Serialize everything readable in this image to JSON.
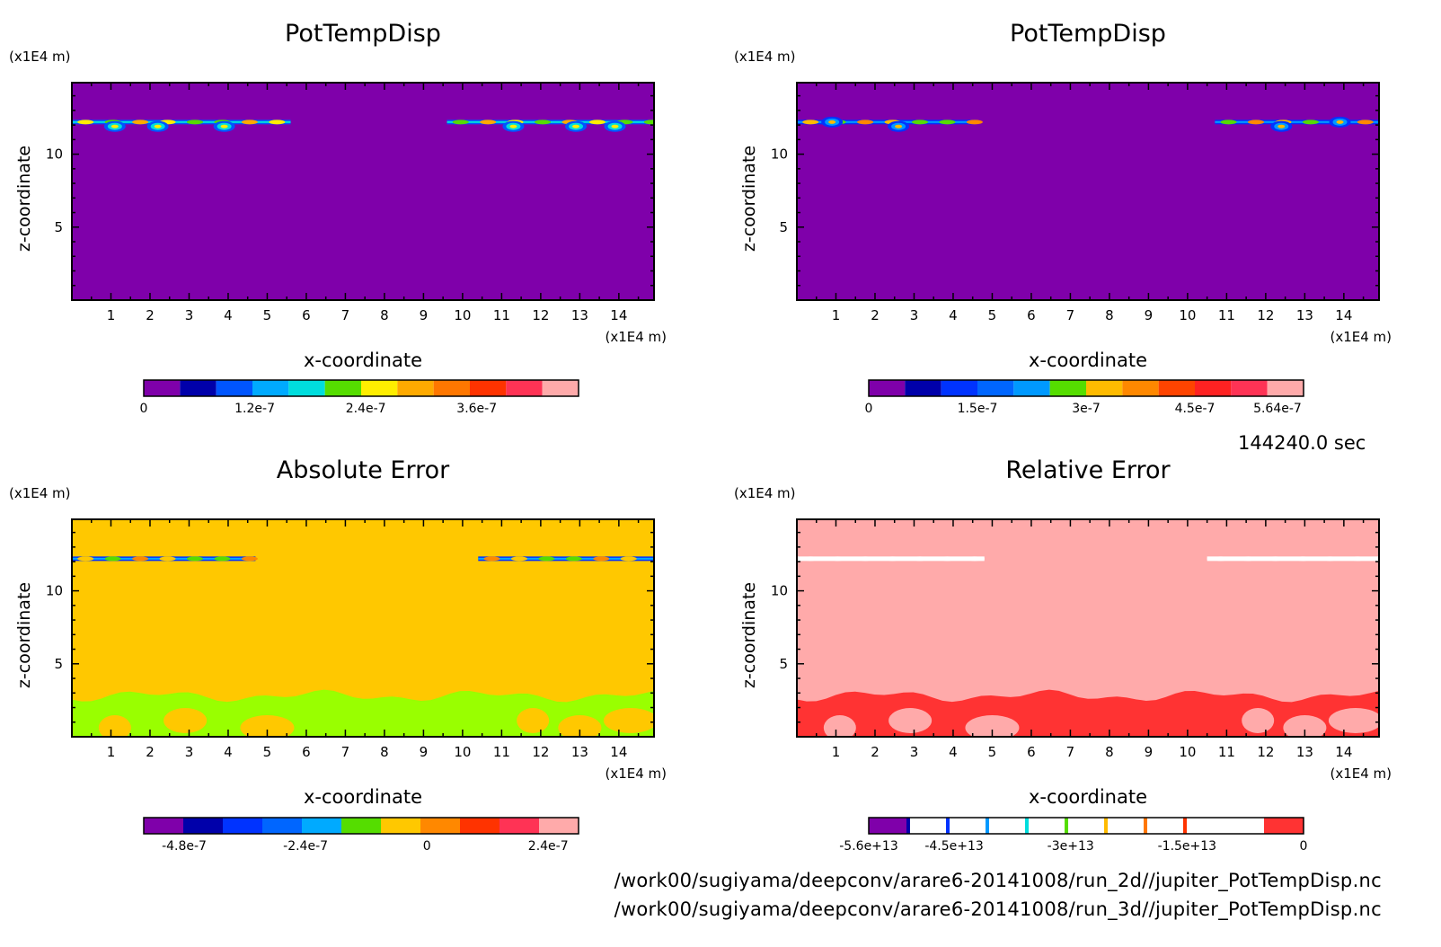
{
  "figure": {
    "time_label": "144240.0 sec",
    "files": [
      "/work00/sugiyama/deepconv/arare6-20141008/run_2d//jupiter_PotTempDisp.nc",
      "/work00/sugiyama/deepconv/arare6-20141008/run_3d//jupiter_PotTempDisp.nc"
    ]
  },
  "chart_data": [
    {
      "type": "heatmap",
      "title": "PotTempDisp",
      "xlabel": "x-coordinate",
      "ylabel": "z-coordinate",
      "x_unit": "(x1E4 m)",
      "y_unit": "(x1E4 m)",
      "xlim": [
        0,
        14.9
      ],
      "ylim": [
        0,
        14.9
      ],
      "x_ticks": [
        "1",
        "2",
        "3",
        "4",
        "5",
        "6",
        "7",
        "8",
        "9",
        "10",
        "11",
        "12",
        "13",
        "14"
      ],
      "y_ticks": [
        "5",
        "10"
      ],
      "background_color": "#7f00aa",
      "colorbar": {
        "colors": [
          "#7f00aa",
          "#0000aa",
          "#0055ff",
          "#00aaff",
          "#00dddd",
          "#55dd00",
          "#ffee00",
          "#ffaa00",
          "#ff7700",
          "#ff3300",
          "#ff3355",
          "#ffaaaa"
        ],
        "tick_labels": [
          "0",
          "1.2e-7",
          "2.4e-7",
          "3.6e-7"
        ],
        "tick_values": [
          0,
          1.2e-07,
          2.4e-07,
          3.6e-07
        ],
        "range": [
          0,
          4.7e-07
        ]
      },
      "features": [
        {
          "x": [
            0,
            5.6
          ],
          "z": 12.2,
          "kind": "band"
        },
        {
          "x": [
            9.6,
            14.9
          ],
          "z": 12.2,
          "kind": "band"
        },
        {
          "x": 1.1,
          "z": 11.9,
          "kind": "blob"
        },
        {
          "x": 2.2,
          "z": 11.9,
          "kind": "blob"
        },
        {
          "x": 3.9,
          "z": 11.9,
          "kind": "blob"
        },
        {
          "x": 11.3,
          "z": 11.9,
          "kind": "blob"
        },
        {
          "x": 12.9,
          "z": 11.9,
          "kind": "blob"
        },
        {
          "x": 13.9,
          "z": 11.9,
          "kind": "blob"
        }
      ]
    },
    {
      "type": "heatmap",
      "title": "PotTempDisp",
      "xlabel": "x-coordinate",
      "ylabel": "z-coordinate",
      "x_unit": "(x1E4 m)",
      "y_unit": "(x1E4 m)",
      "xlim": [
        0,
        14.9
      ],
      "ylim": [
        0,
        14.9
      ],
      "x_ticks": [
        "1",
        "2",
        "3",
        "4",
        "5",
        "6",
        "7",
        "8",
        "9",
        "10",
        "11",
        "12",
        "13",
        "14"
      ],
      "y_ticks": [
        "5",
        "10"
      ],
      "background_color": "#7f00aa",
      "colorbar": {
        "colors": [
          "#7f00aa",
          "#0000aa",
          "#0033ff",
          "#0066ff",
          "#0099ff",
          "#55dd00",
          "#ffbb00",
          "#ff8800",
          "#ff4400",
          "#ff2222",
          "#ff3355",
          "#ffaaaa"
        ],
        "tick_labels": [
          "0",
          "1.5e-7",
          "3e-7",
          "4.5e-7",
          "5.64e-7"
        ],
        "tick_values": [
          0,
          1.5e-07,
          3e-07,
          4.5e-07,
          5.64e-07
        ],
        "range": [
          0,
          6e-07
        ]
      },
      "features": [
        {
          "x": [
            0,
            4.6
          ],
          "z": 12.2,
          "kind": "band"
        },
        {
          "x": [
            10.7,
            14.9
          ],
          "z": 12.2,
          "kind": "band"
        },
        {
          "x": 0.9,
          "z": 12.2,
          "kind": "blob"
        },
        {
          "x": 2.6,
          "z": 11.9,
          "kind": "blob"
        },
        {
          "x": 12.4,
          "z": 11.9,
          "kind": "blob"
        },
        {
          "x": 13.9,
          "z": 12.2,
          "kind": "blob"
        }
      ]
    },
    {
      "type": "heatmap",
      "title": "Absolute Error",
      "xlabel": "x-coordinate",
      "ylabel": "z-coordinate",
      "x_unit": "(x1E4 m)",
      "y_unit": "(x1E4 m)",
      "xlim": [
        0,
        14.9
      ],
      "ylim": [
        0,
        14.9
      ],
      "x_ticks": [
        "1",
        "2",
        "3",
        "4",
        "5",
        "6",
        "7",
        "8",
        "9",
        "10",
        "11",
        "12",
        "13",
        "14"
      ],
      "y_ticks": [
        "5",
        "10"
      ],
      "background_color": "#ffc800",
      "low_region_color": "#99ff00",
      "colorbar": {
        "colors": [
          "#7f00aa",
          "#0000aa",
          "#0033ff",
          "#0066ff",
          "#00aaff",
          "#55dd00",
          "#ffc800",
          "#ff8800",
          "#ff3300",
          "#ff3355",
          "#ffaaaa"
        ],
        "tick_labels": [
          "-4.8e-7",
          "-2.4e-7",
          "0",
          "2.4e-7"
        ],
        "tick_values": [
          -4.8e-07,
          -2.4e-07,
          0,
          2.4e-07
        ],
        "range": [
          -5.6e-07,
          3e-07
        ]
      },
      "features": [
        {
          "x": [
            0,
            4.7
          ],
          "z": 12.2,
          "kind": "band"
        },
        {
          "x": [
            10.4,
            14.9
          ],
          "z": 12.2,
          "kind": "band"
        },
        {
          "x": [
            0,
            14.9
          ],
          "z": [
            0,
            2.8
          ],
          "kind": "low-region"
        }
      ]
    },
    {
      "type": "heatmap",
      "title": "Relative Error",
      "xlabel": "x-coordinate",
      "ylabel": "z-coordinate",
      "x_unit": "(x1E4 m)",
      "y_unit": "(x1E4 m)",
      "xlim": [
        0,
        14.9
      ],
      "ylim": [
        0,
        14.9
      ],
      "x_ticks": [
        "1",
        "2",
        "3",
        "4",
        "5",
        "6",
        "7",
        "8",
        "9",
        "10",
        "11",
        "12",
        "13",
        "14"
      ],
      "y_ticks": [
        "5",
        "10"
      ],
      "background_color": "#ffaaaa",
      "low_region_color": "#ff3333",
      "colorbar": {
        "colors": [
          "#7f00aa",
          "#ffffff",
          "#ffffff",
          "#ffffff",
          "#ffffff",
          "#ffffff",
          "#ffffff",
          "#ffffff",
          "#ffffff",
          "#ffffff",
          "#ff3333"
        ],
        "divider_colors": [
          "#0000aa",
          "#0033ff",
          "#0099ff",
          "#00dddd",
          "#55dd00",
          "#ffbb00",
          "#ff7700",
          "#ff3300"
        ],
        "tick_labels": [
          "-5.6e+13",
          "-4.5e+13",
          "-3e+13",
          "-1.5e+13",
          "0"
        ],
        "tick_values": [
          -56000000000000.0,
          -45000000000000.0,
          -30000000000000.0,
          -15000000000000.0,
          0
        ],
        "range": [
          -56000000000000.0,
          0
        ]
      },
      "features": [
        {
          "x": [
            0,
            4.8
          ],
          "z": 12.2,
          "kind": "band"
        },
        {
          "x": [
            10.5,
            14.9
          ],
          "z": 12.2,
          "kind": "band"
        },
        {
          "x": [
            0,
            14.9
          ],
          "z": [
            0,
            2.8
          ],
          "kind": "low-region"
        }
      ]
    }
  ]
}
